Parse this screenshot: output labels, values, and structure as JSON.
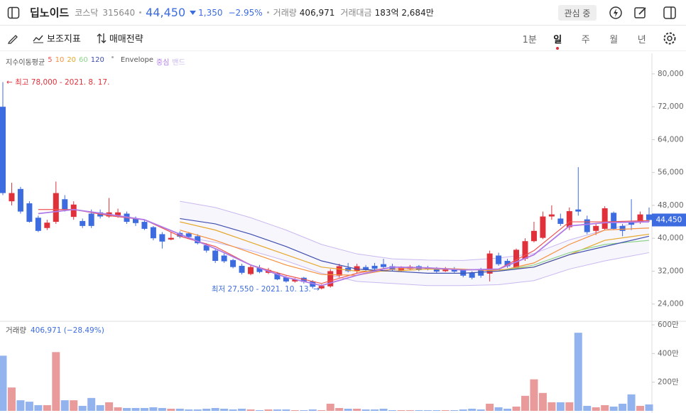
{
  "header": {
    "name": "딥노이드",
    "market": "코스닥",
    "code": "315640",
    "price": "44,450",
    "change": "1,350",
    "change_rate": "−2.95%",
    "volume_label": "거래량",
    "volume": "406,971",
    "amount_label": "거래대금",
    "amount": "183억 2,684만",
    "watch_button": "관심 중"
  },
  "toolbar": {
    "indicators": "보조지표",
    "strategy": "매매전략",
    "periods": [
      "1분",
      "일",
      "주",
      "월",
      "년"
    ],
    "active_period": 1
  },
  "chart_data": {
    "type": "candlestick",
    "indicator_label": "지수이동평균",
    "up_color": "#e0313b",
    "down_color": "#3d6ce0",
    "ylim": [
      19800,
      85000
    ],
    "yticks": [
      {
        "value": 80000,
        "label": "80,000"
      },
      {
        "value": 72000,
        "label": "72,000"
      },
      {
        "value": 64000,
        "label": "64,000"
      },
      {
        "value": 56000,
        "label": "56,000"
      },
      {
        "value": 48000,
        "label": "48,000"
      },
      {
        "value": 40000,
        "label": "40,000"
      },
      {
        "value": 32000,
        "label": "32,000"
      },
      {
        "value": 24000,
        "label": "24,000"
      }
    ],
    "open": [
      72000,
      49000,
      52000,
      48500,
      45000,
      42500,
      44000,
      49500,
      45200,
      44200,
      46000,
      46300,
      45300,
      45600,
      46000,
      44700,
      44000,
      42700,
      41000,
      39700,
      41300,
      41200,
      40500,
      38300,
      37000,
      35800,
      34700,
      33300,
      31300,
      32800,
      31600,
      31500,
      30500,
      29500,
      30400,
      29500,
      27800,
      28300,
      30900,
      32800,
      32000,
      33000,
      33300,
      33700,
      33200,
      32200,
      32500,
      33200,
      32900,
      32600,
      32000,
      32600,
      32300,
      31600,
      32300,
      31400,
      35800,
      34500,
      32700,
      35000,
      39300,
      40100,
      45300,
      44800,
      42700,
      47000,
      44600,
      41800,
      42300,
      46200,
      43000,
      44000,
      44000,
      45800
    ],
    "high": [
      78000,
      53500,
      52500,
      49000,
      45500,
      44500,
      53800,
      50500,
      49000,
      44800,
      47000,
      47000,
      49800,
      47200,
      46500,
      45300,
      44500,
      43000,
      41500,
      41500,
      41700,
      41500,
      41000,
      38800,
      37500,
      36300,
      35000,
      33800,
      33500,
      33500,
      32800,
      31800,
      30800,
      30300,
      30600,
      29800,
      28800,
      32500,
      33800,
      34000,
      33800,
      33500,
      34000,
      35000,
      33800,
      33200,
      33500,
      33500,
      33300,
      33000,
      33000,
      33000,
      32600,
      32000,
      32800,
      37000,
      36500,
      35000,
      37500,
      40000,
      44000,
      46500,
      48000,
      46000,
      47500,
      57300,
      45500,
      43500,
      47800,
      46500,
      43500,
      49500,
      46500,
      47500
    ],
    "low": [
      50500,
      48000,
      46000,
      43800,
      41500,
      42000,
      43500,
      46500,
      44500,
      42500,
      42500,
      44800,
      45000,
      45000,
      43500,
      43000,
      42000,
      39500,
      37500,
      39500,
      40000,
      40000,
      38500,
      36500,
      34000,
      34000,
      32700,
      31200,
      31000,
      31500,
      31300,
      29800,
      29200,
      29200,
      29000,
      27800,
      27550,
      28000,
      30500,
      31700,
      31500,
      32000,
      32300,
      32700,
      32000,
      32000,
      32200,
      32000,
      32200,
      31600,
      31800,
      31600,
      30500,
      30000,
      30400,
      29500,
      33300,
      32800,
      32500,
      34500,
      39000,
      39800,
      44500,
      43000,
      42000,
      45500,
      41000,
      40800,
      42000,
      42000,
      40500,
      42000,
      43500,
      44000
    ],
    "close": [
      51000,
      51000,
      46500,
      44000,
      41800,
      43800,
      51000,
      47000,
      48200,
      43000,
      43000,
      45300,
      46300,
      46300,
      44000,
      43700,
      42300,
      40000,
      39200,
      40100,
      40400,
      40300,
      38800,
      37000,
      34500,
      34400,
      33000,
      31600,
      33000,
      31800,
      32300,
      30000,
      29500,
      30000,
      29400,
      28200,
      28400,
      32000,
      33200,
      32000,
      33200,
      32300,
      32600,
      33000,
      32300,
      32800,
      33100,
      32300,
      32500,
      31900,
      32600,
      31900,
      30900,
      30400,
      30900,
      36300,
      33700,
      33200,
      37200,
      39300,
      41800,
      45300,
      45800,
      43500,
      46600,
      46500,
      41500,
      43000,
      47300,
      42300,
      41800,
      43300,
      45800,
      44450
    ],
    "lines": [
      {
        "name": "5",
        "color": "#ef5350",
        "x": [
          4,
          8,
          12,
          16,
          20,
          24,
          28,
          32,
          36,
          40,
          44,
          48,
          52,
          56,
          60,
          64,
          68,
          73
        ],
        "values": [
          47000,
          47000,
          45500,
          44500,
          40500,
          38000,
          33500,
          31000,
          29000,
          31500,
          33000,
          32700,
          32300,
          32500,
          37000,
          44000,
          44000,
          44300
        ]
      },
      {
        "name": "10",
        "color": "#f5903d",
        "x": [
          20,
          24,
          28,
          32,
          36,
          40,
          44,
          48,
          52,
          56,
          60,
          64,
          68,
          73
        ],
        "values": [
          42000,
          39500,
          36500,
          33500,
          31200,
          31000,
          32500,
          32800,
          32500,
          32000,
          34000,
          38500,
          42000,
          42500
        ]
      },
      {
        "name": "20",
        "color": "#e6a82a",
        "x": [
          20,
          24,
          28,
          32,
          36,
          40,
          44,
          48,
          52,
          56,
          60,
          64,
          68,
          73
        ],
        "values": [
          44000,
          42000,
          39000,
          36000,
          33000,
          32000,
          32000,
          32500,
          32400,
          32300,
          33000,
          36000,
          39500,
          41000
        ]
      },
      {
        "name": "60",
        "color": "#8fd48c",
        "x": [
          56,
          60,
          64,
          68,
          73
        ],
        "values": [
          32000,
          33500,
          36500,
          38500,
          39500
        ]
      },
      {
        "name": "120",
        "color": "#3f4fae",
        "x": [
          20,
          24,
          28,
          32,
          36,
          40,
          44,
          48,
          52,
          56,
          60,
          64,
          68,
          73
        ],
        "values": [
          44800,
          43500,
          41000,
          38000,
          34500,
          32500,
          32000,
          31500,
          31500,
          32000,
          33000,
          36000,
          38000,
          40500
        ]
      }
    ],
    "envelope": {
      "label": "Envelope",
      "center": {
        "name": "중심",
        "color": "#b07ae6",
        "x": [
          4,
          8,
          12,
          16,
          20,
          24,
          28,
          32,
          36,
          40,
          44,
          48,
          52,
          56,
          60,
          64,
          68,
          73
        ],
        "values": [
          46000,
          47000,
          45800,
          44500,
          41000,
          37500,
          33500,
          30500,
          28500,
          31000,
          33000,
          32800,
          32300,
          32500,
          36000,
          43000,
          43800,
          44000
        ]
      },
      "band": {
        "name": "밴드",
        "color": "#c9b8f0",
        "x": [
          20,
          24,
          28,
          32,
          36,
          40,
          44,
          48,
          52,
          56,
          60,
          64,
          68,
          73
        ],
        "upper": [
          49000,
          47500,
          45000,
          42000,
          38500,
          36200,
          35000,
          34700,
          34600,
          35200,
          36300,
          39600,
          42000,
          44500
        ],
        "lower": [
          40500,
          39000,
          37000,
          34500,
          31500,
          29500,
          29000,
          28500,
          28500,
          28700,
          29700,
          32500,
          34500,
          36500
        ]
      }
    },
    "annotations": [
      {
        "text": "← 최고 78,000 - 2021. 8. 17.",
        "color": "#e0313b"
      },
      {
        "text": "최저 27,550 - 2021. 10. 13. →",
        "color": "#3d6ce0"
      }
    ],
    "volume": {
      "label": "거래량",
      "value_text": "406,971 (−28.49%)",
      "up_color": "#e99a9a",
      "down_color": "#93b3ee",
      "ylim": [
        0,
        6100000
      ],
      "yticks": [
        {
          "value": 6000000,
          "label": "600만"
        },
        {
          "value": 4000000,
          "label": "400만"
        },
        {
          "value": 2000000,
          "label": "200만"
        }
      ],
      "values": [
        3850000,
        1630000,
        740000,
        640000,
        400000,
        400000,
        4100000,
        740000,
        740000,
        350000,
        900000,
        400000,
        600000,
        250000,
        200000,
        200000,
        200000,
        250000,
        200000,
        150000,
        150000,
        100000,
        100000,
        150000,
        200000,
        150000,
        100000,
        150000,
        100000,
        50000,
        100000,
        100000,
        100000,
        50000,
        50000,
        100000,
        50000,
        500000,
        200000,
        150000,
        150000,
        100000,
        100000,
        150000,
        50000,
        50000,
        50000,
        50000,
        50000,
        50000,
        50000,
        50000,
        100000,
        150000,
        100000,
        500000,
        250000,
        150000,
        300000,
        1050000,
        2200000,
        1250000,
        600000,
        600000,
        600000,
        5450000,
        350000,
        250000,
        400000,
        300000,
        500000,
        1150000,
        350000,
        450000
      ]
    }
  }
}
